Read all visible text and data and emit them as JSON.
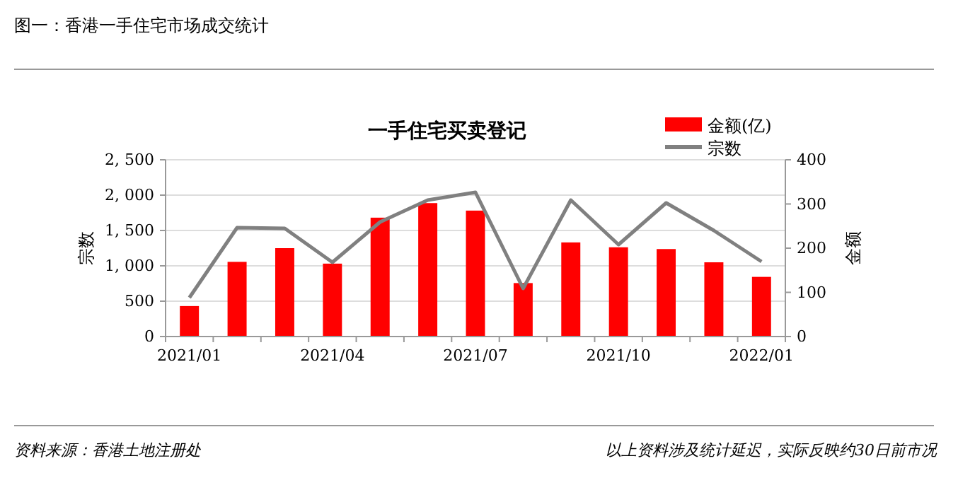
{
  "chart_data": {
    "type": "bar",
    "title": "一手住宅买卖登记",
    "subtitle": "图一：香港一手住宅市场成交统计",
    "ylabel": "宗数",
    "y2label": "金额",
    "categories": [
      "2021/01",
      null,
      null,
      "2021/04",
      null,
      null,
      "2021/07",
      null,
      null,
      "2021/10",
      null,
      null,
      "2022/01"
    ],
    "series": [
      {
        "name": "金额(亿)",
        "axis": "y2",
        "color": "#ff0000",
        "values": [
          69,
          169,
          200,
          165,
          269,
          302,
          285,
          121,
          213,
          202,
          198,
          168,
          135
        ]
      },
      {
        "name": "宗数",
        "type": "line",
        "color": "#808080",
        "values": [
          550,
          1540,
          1530,
          1050,
          1620,
          1930,
          2040,
          680,
          1930,
          1300,
          1890,
          1500,
          1060
        ]
      }
    ],
    "ylim": [
      0,
      2500
    ],
    "yticks": [
      0,
      {
        "value": 500,
        "label": "500"
      },
      {
        "value": 1000,
        "label": "1, 000"
      },
      {
        "value": 1500,
        "label": "1, 500"
      },
      {
        "value": 2000,
        "label": "2, 000"
      },
      {
        "value": 2500,
        "label": "2, 500"
      }
    ],
    "y2lim": [
      0,
      400
    ],
    "y2ticks": [
      0,
      100,
      200,
      300,
      400
    ],
    "grid": "y",
    "legend": "top right",
    "marker": "none",
    "line_style": "solid",
    "annotations": [
      "资料来源：香港土地注册处",
      "以上资料涉及统计延迟，实际反映约30日前市况"
    ]
  }
}
